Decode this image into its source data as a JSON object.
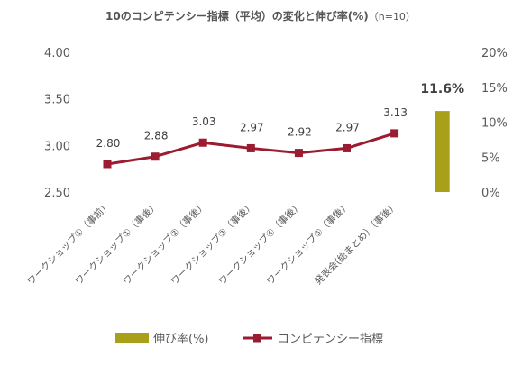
{
  "chart_data": {
    "type": "line",
    "title": "10のコンピテンシー指標（平均）の変化と伸び率(%)",
    "title_suffix": "（n=10）",
    "categories": [
      "ワークショップ①（事前）",
      "ワークショップ①（事後）",
      "ワークショップ②（事後）",
      "ワークショップ③（事後）",
      "ワークショップ④（事後）",
      "ワークショップ⑤（事後）",
      "発表会(総まとめ）（事後）"
    ],
    "series": [
      {
        "name": "コンピテンシー指標",
        "type": "line",
        "axis": "left",
        "color": "#9b1b30",
        "values": [
          2.8,
          2.88,
          3.03,
          2.97,
          2.92,
          2.97,
          3.13
        ],
        "labels": [
          "2.80",
          "2.88",
          "3.03",
          "2.97",
          "2.92",
          "2.97",
          "3.13"
        ]
      },
      {
        "name": "伸び率(%)",
        "type": "bar",
        "axis": "right",
        "color": "#a8a018",
        "category_index": 7,
        "value": 11.6,
        "label": "11.6%"
      }
    ],
    "y_left": {
      "min": 2.5,
      "max": 4.0,
      "ticks": [
        2.5,
        3.0,
        3.5,
        4.0
      ],
      "tick_labels": [
        "2.50",
        "3.00",
        "3.50",
        "4.00"
      ]
    },
    "y_right": {
      "min": 0,
      "max": 20,
      "ticks": [
        0,
        5,
        10,
        15,
        20
      ],
      "tick_labels": [
        "0%",
        "5%",
        "10%",
        "15%",
        "20%"
      ]
    },
    "grid": false,
    "legend_position": "bottom"
  }
}
